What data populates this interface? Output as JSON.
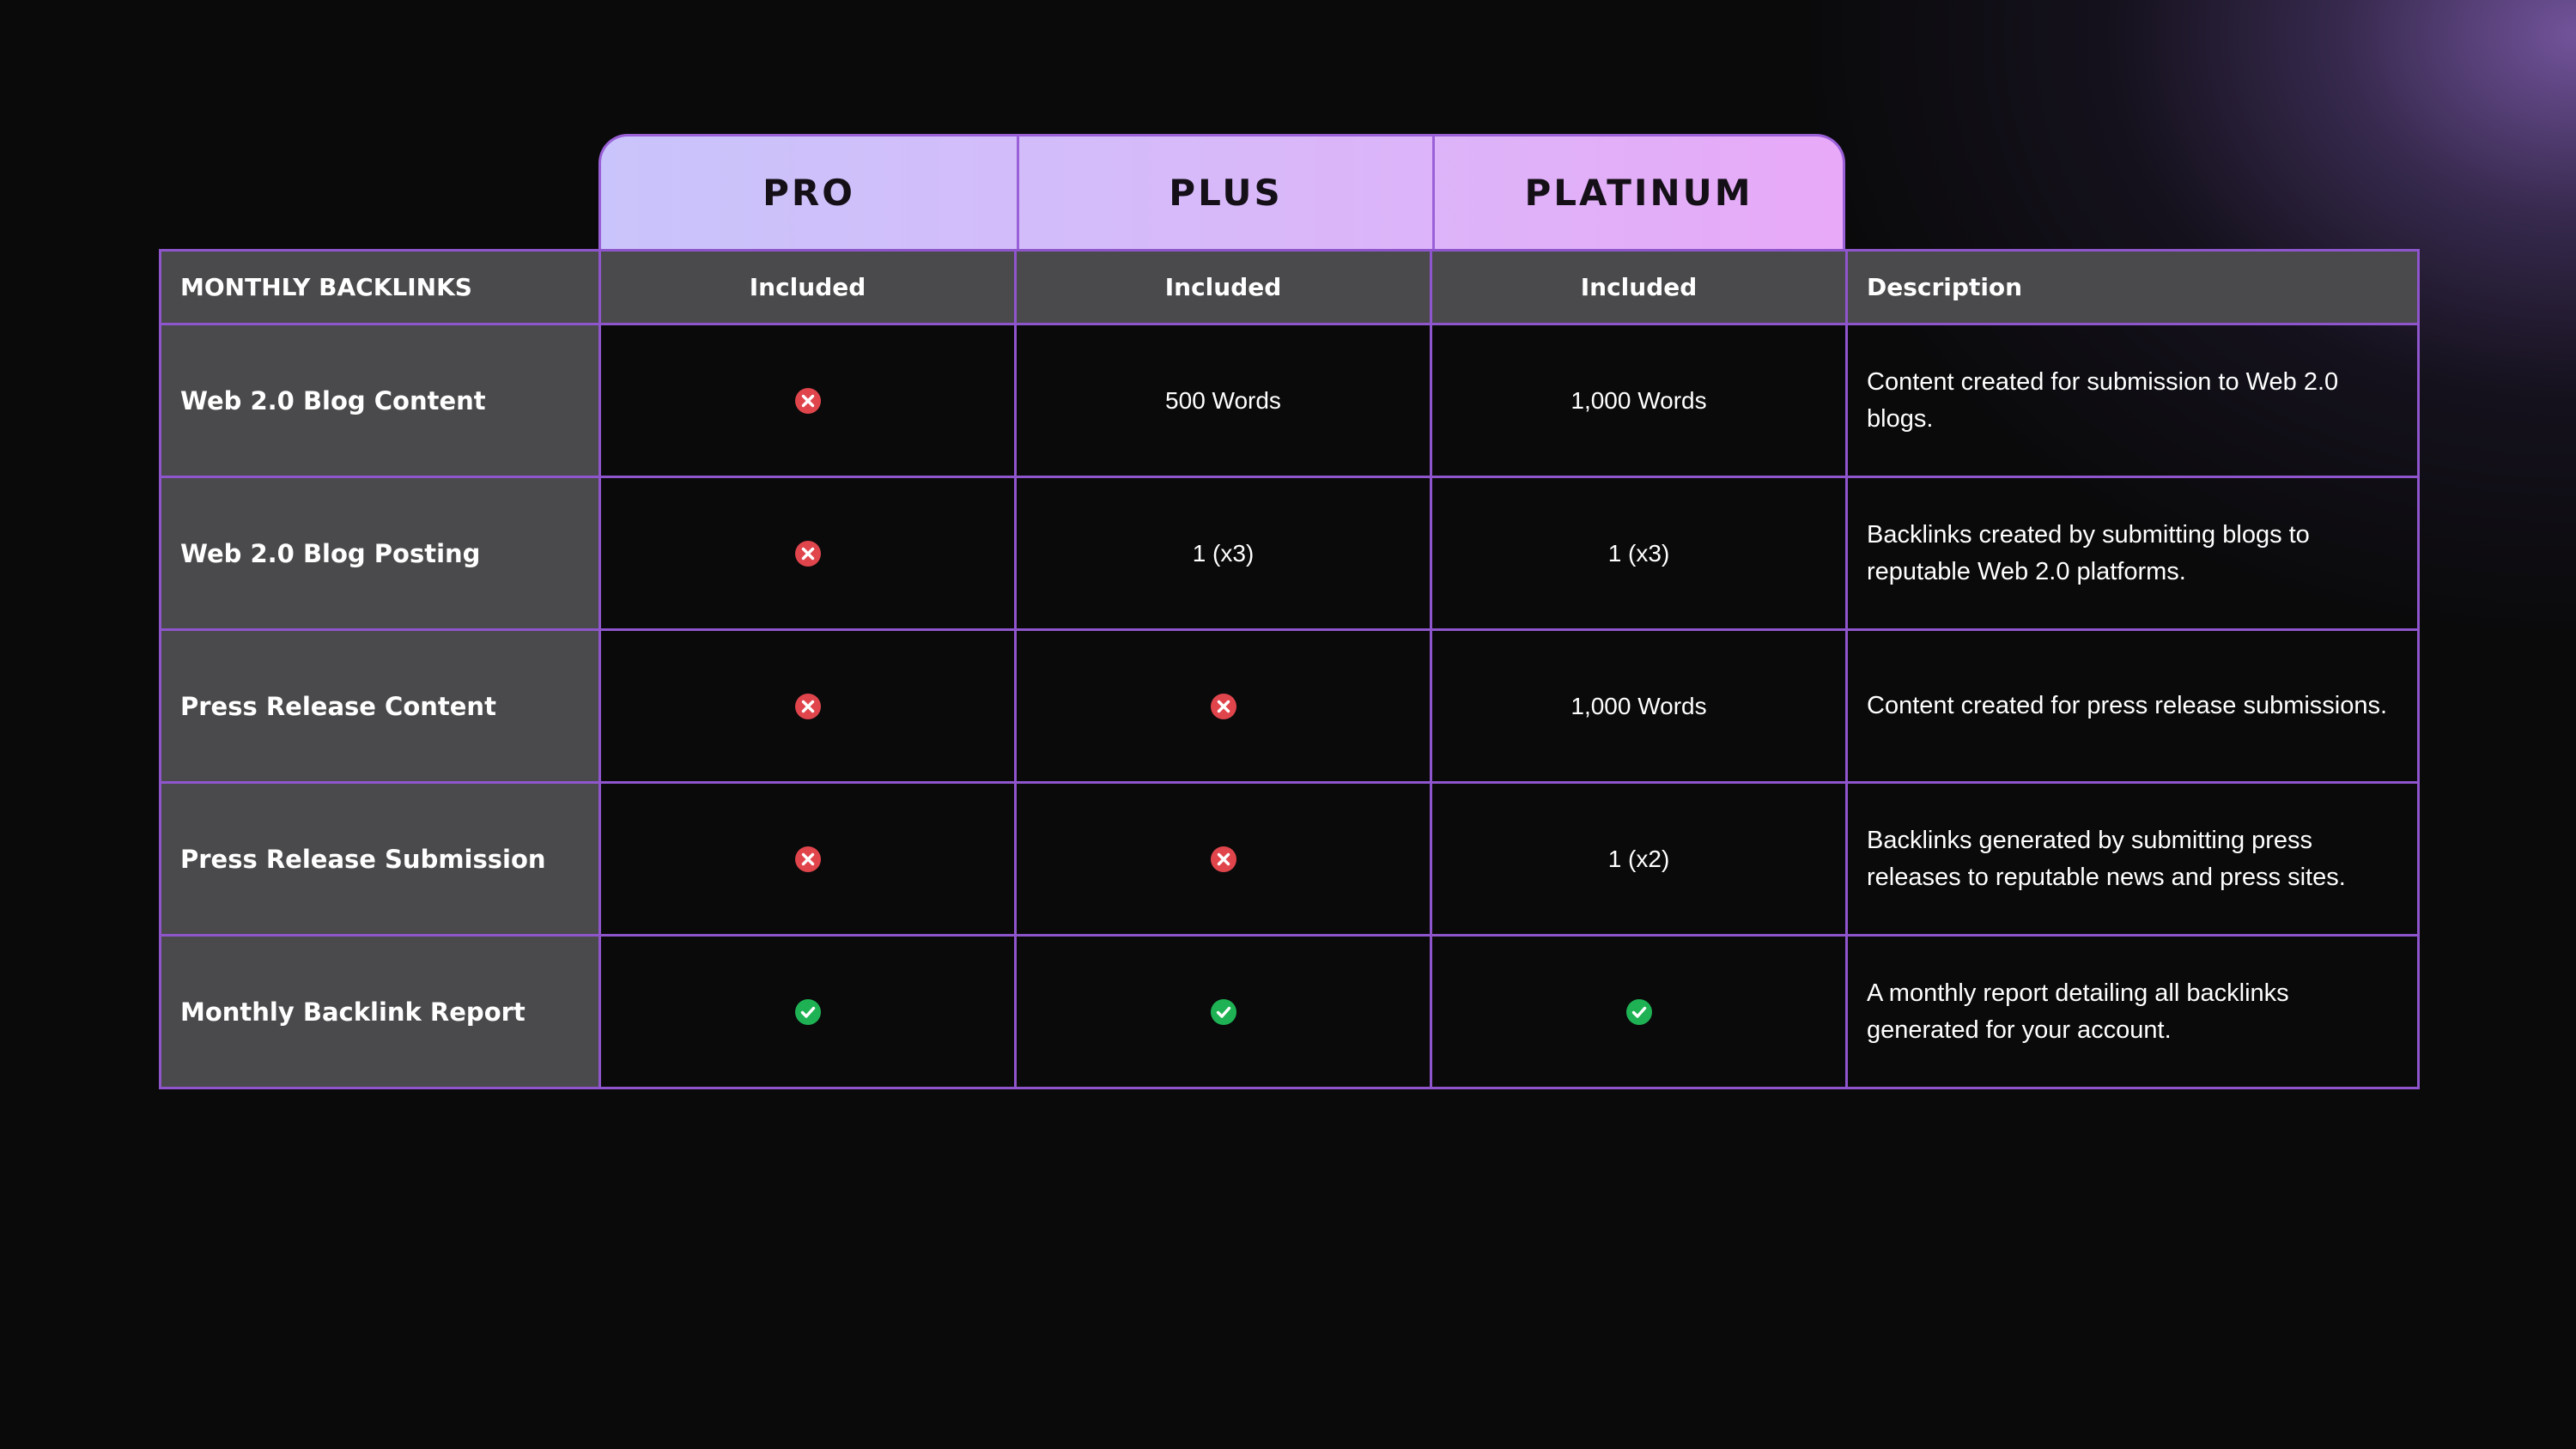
{
  "tiers": [
    "PRO",
    "PLUS",
    "PLATINUM"
  ],
  "colors": {
    "accent_border": "#8e55cc",
    "header_gradient_start": "#c9c4fb",
    "header_gradient_end": "#e8a9f8",
    "row_label_bg": "#4a4a4c",
    "cross": "#e0454c",
    "check": "#1fb254"
  },
  "table": {
    "header": {
      "label": "MONTHLY BACKLINKS",
      "cells": [
        "Included",
        "Included",
        "Included"
      ],
      "description": "Description"
    },
    "rows": [
      {
        "label": "Web 2.0 Blog Content",
        "cells": [
          {
            "type": "icon",
            "icon": "cross-icon"
          },
          {
            "type": "text",
            "text": "500 Words"
          },
          {
            "type": "text",
            "text": "1,000 Words"
          }
        ],
        "description": "Content created for submission to Web 2.0 blogs."
      },
      {
        "label": "Web 2.0 Blog Posting",
        "cells": [
          {
            "type": "icon",
            "icon": "cross-icon"
          },
          {
            "type": "text",
            "text": "1 (x3)"
          },
          {
            "type": "text",
            "text": "1 (x3)"
          }
        ],
        "description": "Backlinks created by submitting blogs to reputable Web 2.0 platforms."
      },
      {
        "label": "Press Release Content",
        "cells": [
          {
            "type": "icon",
            "icon": "cross-icon"
          },
          {
            "type": "icon",
            "icon": "cross-icon"
          },
          {
            "type": "text",
            "text": "1,000 Words"
          }
        ],
        "description": "Content created for press release submissions."
      },
      {
        "label": "Press Release Submission",
        "cells": [
          {
            "type": "icon",
            "icon": "cross-icon"
          },
          {
            "type": "icon",
            "icon": "cross-icon"
          },
          {
            "type": "text",
            "text": "1 (x2)"
          }
        ],
        "description": "Backlinks generated by submitting press releases to reputable news and press sites."
      },
      {
        "label": "Monthly Backlink Report",
        "cells": [
          {
            "type": "icon",
            "icon": "check-icon"
          },
          {
            "type": "icon",
            "icon": "check-icon"
          },
          {
            "type": "icon",
            "icon": "check-icon"
          }
        ],
        "description": "A monthly report detailing all backlinks generated for your account."
      }
    ]
  }
}
